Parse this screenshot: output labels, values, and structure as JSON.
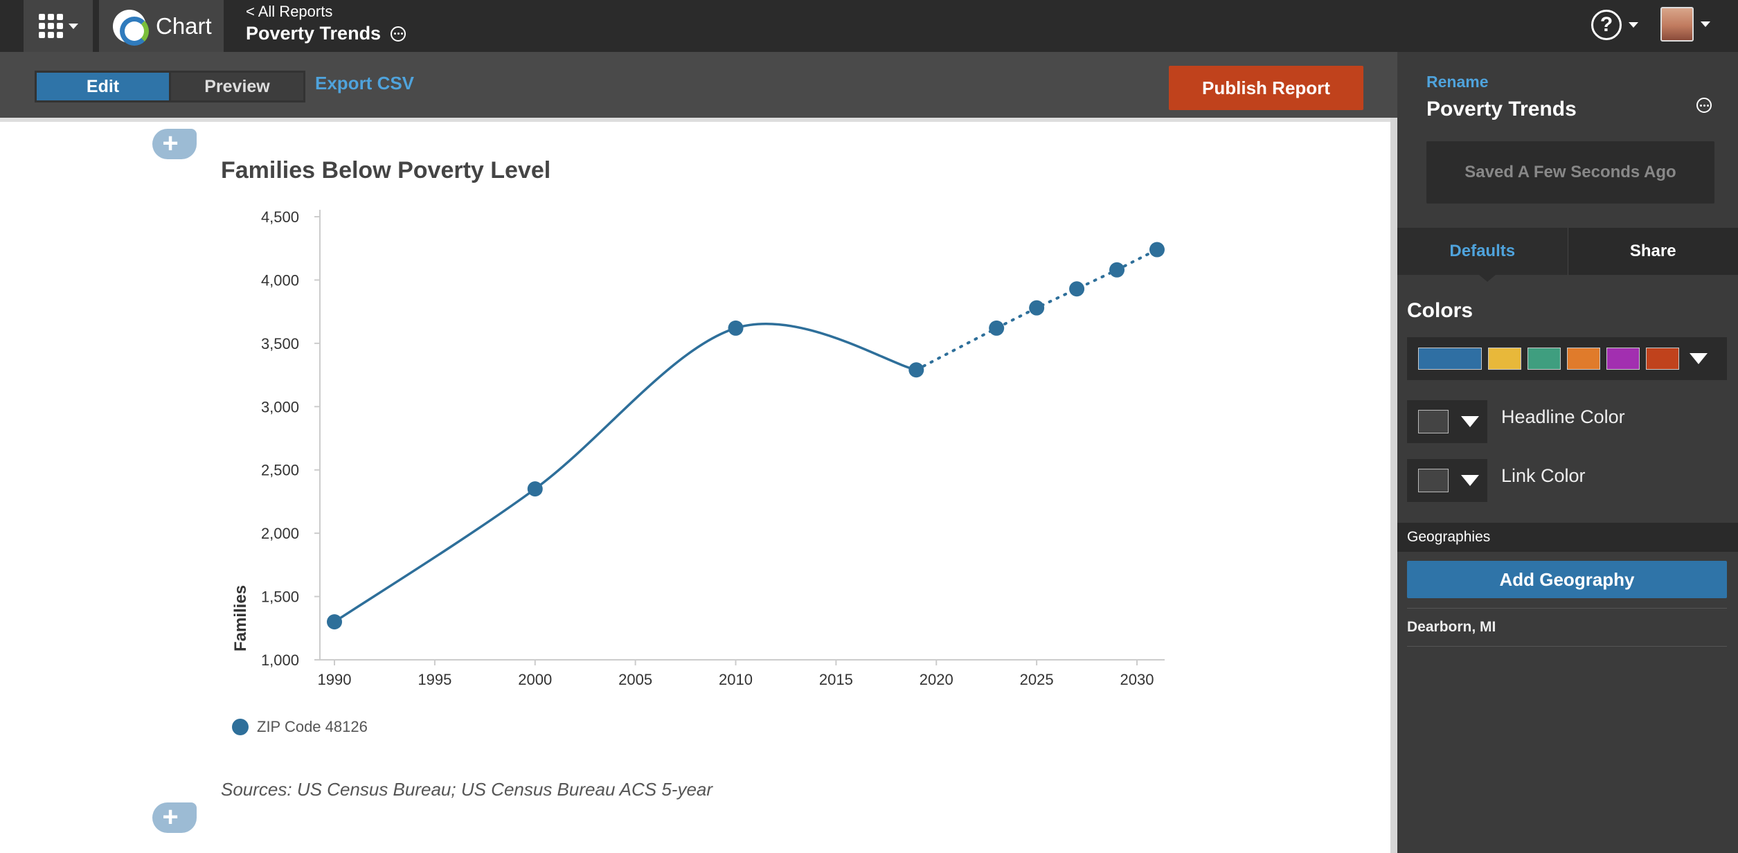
{
  "topbar": {
    "product_name": "Chart",
    "back_link": "< All Reports",
    "report_title": "Poverty Trends",
    "help_symbol": "?"
  },
  "toolbar": {
    "edit_label": "Edit",
    "preview_label": "Preview",
    "export_label": "Export CSV",
    "publish_label": "Publish Report"
  },
  "chart_data": {
    "type": "line",
    "title": "Families Below Poverty Level",
    "ylabel": "Families",
    "xlabel": "",
    "x_ticks": [
      1990,
      1995,
      2000,
      2005,
      2010,
      2015,
      2020,
      2025,
      2030
    ],
    "y_ticks": [
      1000,
      1500,
      2000,
      2500,
      3000,
      3500,
      4000,
      4500
    ],
    "y_tick_labels": [
      "1,000",
      "1,500",
      "2,000",
      "2,500",
      "3,000",
      "3,500",
      "4,000",
      "4,500"
    ],
    "xlim": [
      1990,
      2031
    ],
    "ylim": [
      1000,
      4500
    ],
    "series": [
      {
        "name": "ZIP Code 48126",
        "color": "#2e6f9a",
        "actual": [
          {
            "x": 1990,
            "y": 1300
          },
          {
            "x": 2000,
            "y": 2350
          },
          {
            "x": 2010,
            "y": 3620
          },
          {
            "x": 2019,
            "y": 3290
          }
        ],
        "projected": [
          {
            "x": 2023,
            "y": 3620
          },
          {
            "x": 2025,
            "y": 3780
          },
          {
            "x": 2027,
            "y": 3930
          },
          {
            "x": 2029,
            "y": 4080
          },
          {
            "x": 2031,
            "y": 4240
          }
        ]
      }
    ],
    "legend_position": "bottom-left"
  },
  "legend_label": "ZIP Code 48126",
  "sources": "Sources: US Census Bureau; US Census Bureau ACS 5-year",
  "panel": {
    "rename_label": "Rename",
    "title": "Poverty Trends",
    "saved_status": "Saved A Few Seconds Ago",
    "tab_defaults": "Defaults",
    "tab_share": "Share",
    "colors_label": "Colors",
    "palette": [
      "#2f6fa3",
      "#e8b83a",
      "#3f9e7f",
      "#e07b2b",
      "#a22fb0",
      "#c0421c"
    ],
    "headline_color_label": "Headline Color",
    "link_color_label": "Link Color",
    "geographies_label": "Geographies",
    "add_geography_label": "Add Geography",
    "geography_item": "Dearborn, MI"
  }
}
